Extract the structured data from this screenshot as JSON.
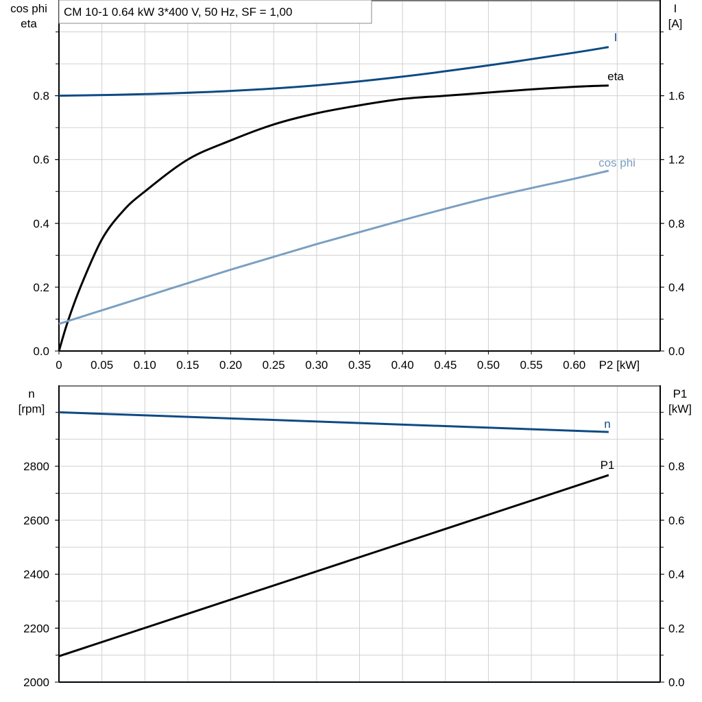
{
  "chart_data": [
    {
      "type": "line",
      "title": "CM 10-1   0.64 kW   3*400 V, 50 Hz, SF = 1,00",
      "xlabel": "P2 [kW]",
      "ylabel_left": [
        "cos phi",
        "eta"
      ],
      "ylabel_right": [
        "I",
        "[A]"
      ],
      "xlim": [
        0,
        0.7
      ],
      "ylim_left": [
        0,
        1.1
      ],
      "ylim_right": [
        0,
        2.2
      ],
      "grid": true,
      "x_ticks": [
        "0",
        "0.05",
        "0.10",
        "0.15",
        "0.20",
        "0.25",
        "0.30",
        "0.35",
        "0.40",
        "0.45",
        "0.50",
        "0.55",
        "0.60"
      ],
      "left_ticks": [
        "0.0",
        "0.2",
        "0.4",
        "0.6",
        "0.8"
      ],
      "right_ticks": [
        "0.0",
        "0.4",
        "0.8",
        "1.2",
        "1.6"
      ],
      "series": [
        {
          "name": "I",
          "axis": "right",
          "color": "#0d4a83",
          "x": [
            0,
            0.1,
            0.2,
            0.3,
            0.4,
            0.5,
            0.6,
            0.64
          ],
          "y": [
            1.6,
            1.61,
            1.63,
            1.665,
            1.72,
            1.79,
            1.87,
            1.905
          ]
        },
        {
          "name": "eta",
          "axis": "left",
          "color": "#000000",
          "x": [
            0,
            0.01,
            0.025,
            0.05,
            0.075,
            0.1,
            0.15,
            0.2,
            0.25,
            0.3,
            0.35,
            0.4,
            0.45,
            0.5,
            0.55,
            0.6,
            0.64
          ],
          "y": [
            0,
            0.09,
            0.2,
            0.35,
            0.44,
            0.5,
            0.6,
            0.66,
            0.71,
            0.745,
            0.77,
            0.79,
            0.8,
            0.81,
            0.82,
            0.828,
            0.832
          ]
        },
        {
          "name": "cos phi",
          "axis": "left",
          "color": "#7a9fc2",
          "x": [
            0,
            0.1,
            0.2,
            0.3,
            0.4,
            0.5,
            0.6,
            0.64
          ],
          "y": [
            0.085,
            0.17,
            0.255,
            0.335,
            0.41,
            0.48,
            0.54,
            0.565
          ]
        }
      ]
    },
    {
      "type": "line",
      "ylabel_left": [
        "n",
        "[rpm]"
      ],
      "ylabel_right": [
        "P1",
        "[kW]"
      ],
      "xlim": [
        0,
        0.7
      ],
      "ylim_left": [
        2000,
        3100
      ],
      "ylim_right": [
        0,
        1.1
      ],
      "grid": true,
      "left_ticks": [
        "2000",
        "2200",
        "2400",
        "2600",
        "2800"
      ],
      "right_ticks": [
        "0.0",
        "0.2",
        "0.4",
        "0.6",
        "0.8"
      ],
      "series": [
        {
          "name": "n",
          "axis": "left",
          "color": "#0d4a83",
          "x": [
            0,
            0.64
          ],
          "y": [
            3000,
            2927
          ]
        },
        {
          "name": "P1",
          "axis": "right",
          "color": "#000000",
          "x": [
            0,
            0.64
          ],
          "y": [
            0.096,
            0.767
          ]
        }
      ]
    }
  ]
}
